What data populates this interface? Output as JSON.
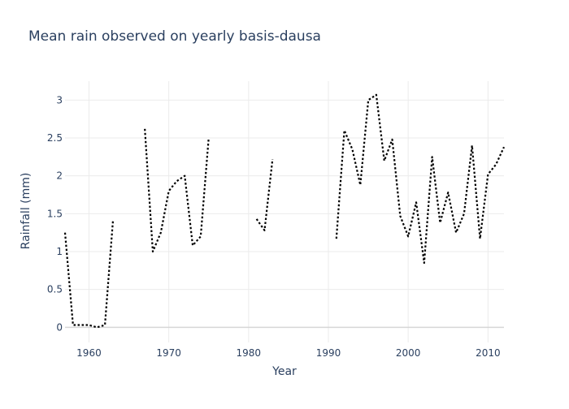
{
  "chart_data": {
    "type": "line",
    "title": "Mean rain observed on yearly basis-dausa",
    "xlabel": "Year",
    "ylabel": "Rainfall (mm)",
    "xlim": [
      1957,
      2012
    ],
    "ylim": [
      -0.2,
      3.25
    ],
    "x_ticks": [
      1960,
      1970,
      1980,
      1990,
      2000,
      2010
    ],
    "y_ticks": [
      0,
      0.5,
      1,
      1.5,
      2,
      2.5,
      3
    ],
    "y_tick_labels": [
      "0",
      "0.5",
      "1",
      "1.5",
      "2",
      "2.5",
      "3"
    ],
    "grid": true,
    "line_style": "dotted",
    "line_color": "#000000",
    "series": [
      {
        "x": [
          1957,
          1958,
          1959,
          1960,
          1961,
          1962,
          1963,
          1964,
          1965,
          1966,
          1967,
          1968,
          1969,
          1970,
          1971,
          1972,
          1973,
          1974,
          1975,
          1976,
          1977,
          1978,
          1979,
          1980,
          1981,
          1982,
          1983,
          1984,
          1985,
          1986,
          1987,
          1988,
          1989,
          1990,
          1991,
          1992,
          1993,
          1994,
          1995,
          1996,
          1997,
          1998,
          1999,
          2000,
          2001,
          2002,
          2003,
          2004,
          2005,
          2006,
          2007,
          2008,
          2009,
          2010,
          2011,
          2012
        ],
        "values": [
          1.25,
          0.03,
          0.03,
          0.03,
          0.0,
          0.03,
          1.4,
          null,
          null,
          null,
          2.62,
          1.0,
          1.25,
          1.8,
          1.93,
          2.0,
          1.08,
          1.2,
          2.5,
          null,
          null,
          null,
          null,
          null,
          1.43,
          1.28,
          2.22,
          null,
          null,
          null,
          null,
          null,
          null,
          null,
          1.17,
          2.6,
          2.35,
          1.88,
          3.0,
          3.07,
          2.2,
          2.48,
          1.47,
          1.2,
          1.65,
          0.85,
          2.25,
          1.38,
          1.78,
          1.25,
          1.5,
          2.4,
          1.17,
          2.02,
          2.15,
          2.38
        ]
      }
    ]
  }
}
